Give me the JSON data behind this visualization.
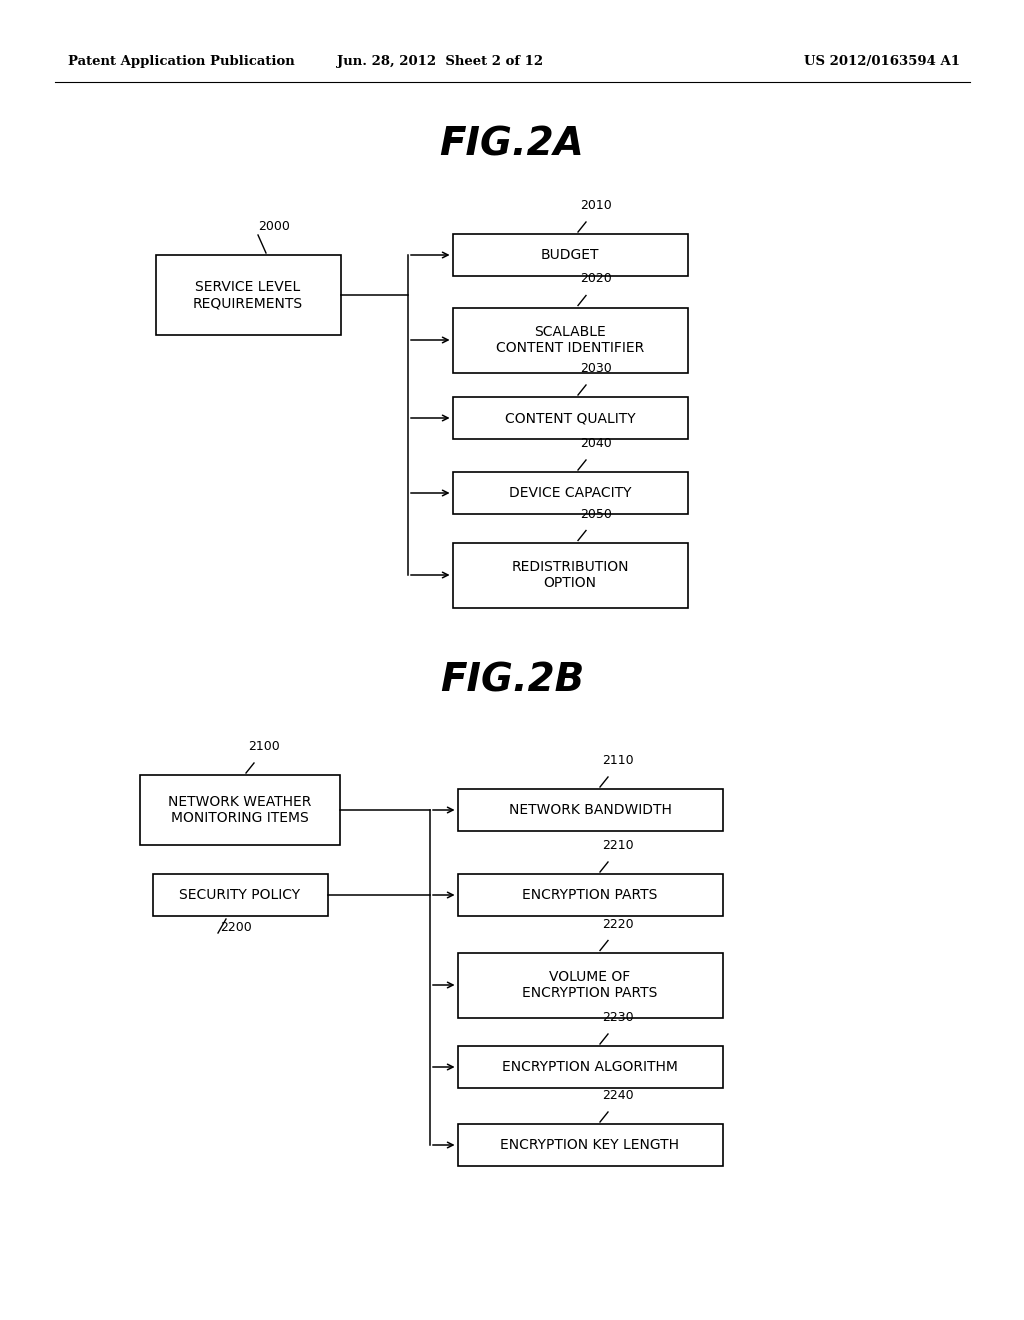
{
  "background_color": "#ffffff",
  "header_left": "Patent Application Publication",
  "header_mid": "Jun. 28, 2012  Sheet 2 of 12",
  "header_right": "US 2012/0163594 A1",
  "fig2a_title": "FIG.2A",
  "fig2b_title": "FIG.2B",
  "fig2a": {
    "source_label": "SERVICE LEVEL\nREQUIREMENTS",
    "source_id": "2000",
    "targets": [
      {
        "label": "BUDGET",
        "id": "2010",
        "lines": 1
      },
      {
        "label": "SCALABLE\nCONTENT IDENTIFIER",
        "id": "2020",
        "lines": 2
      },
      {
        "label": "CONTENT QUALITY",
        "id": "2030",
        "lines": 1
      },
      {
        "label": "DEVICE CAPACITY",
        "id": "2040",
        "lines": 1
      },
      {
        "label": "REDISTRIBUTION\nOPTION",
        "id": "2050",
        "lines": 2
      }
    ]
  },
  "fig2b": {
    "sources": [
      {
        "label": "NETWORK WEATHER\nMONITORING ITEMS",
        "id": "2100",
        "lines": 2
      },
      {
        "label": "SECURITY POLICY",
        "id": "2200",
        "lines": 1
      }
    ],
    "targets": [
      {
        "label": "NETWORK BANDWIDTH",
        "id": "2110",
        "lines": 1
      },
      {
        "label": "ENCRYPTION PARTS",
        "id": "2210",
        "lines": 1
      },
      {
        "label": "VOLUME OF\nENCRYPTION PARTS",
        "id": "2220",
        "lines": 2
      },
      {
        "label": "ENCRYPTION ALGORITHM",
        "id": "2230",
        "lines": 1
      },
      {
        "label": "ENCRYPTION KEY LENGTH",
        "id": "2240",
        "lines": 1
      }
    ]
  }
}
